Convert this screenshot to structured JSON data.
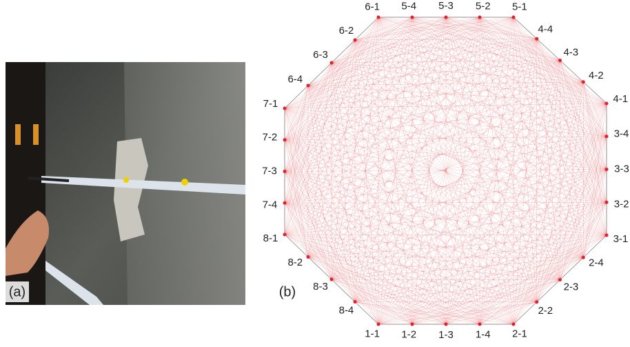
{
  "photo": {
    "label": "(a)"
  },
  "diagram": {
    "label": "(b)",
    "nodes": [
      "1-1",
      "1-2",
      "1-3",
      "1-4",
      "2-1",
      "2-2",
      "2-3",
      "2-4",
      "3-1",
      "3-2",
      "3-3",
      "3-4",
      "4-1",
      "4-2",
      "4-3",
      "4-4",
      "5-1",
      "5-2",
      "5-3",
      "5-4",
      "6-1",
      "6-2",
      "6-3",
      "6-4",
      "7-1",
      "7-2",
      "7-3",
      "7-4",
      "8-1",
      "8-2",
      "8-3",
      "8-4"
    ]
  }
}
